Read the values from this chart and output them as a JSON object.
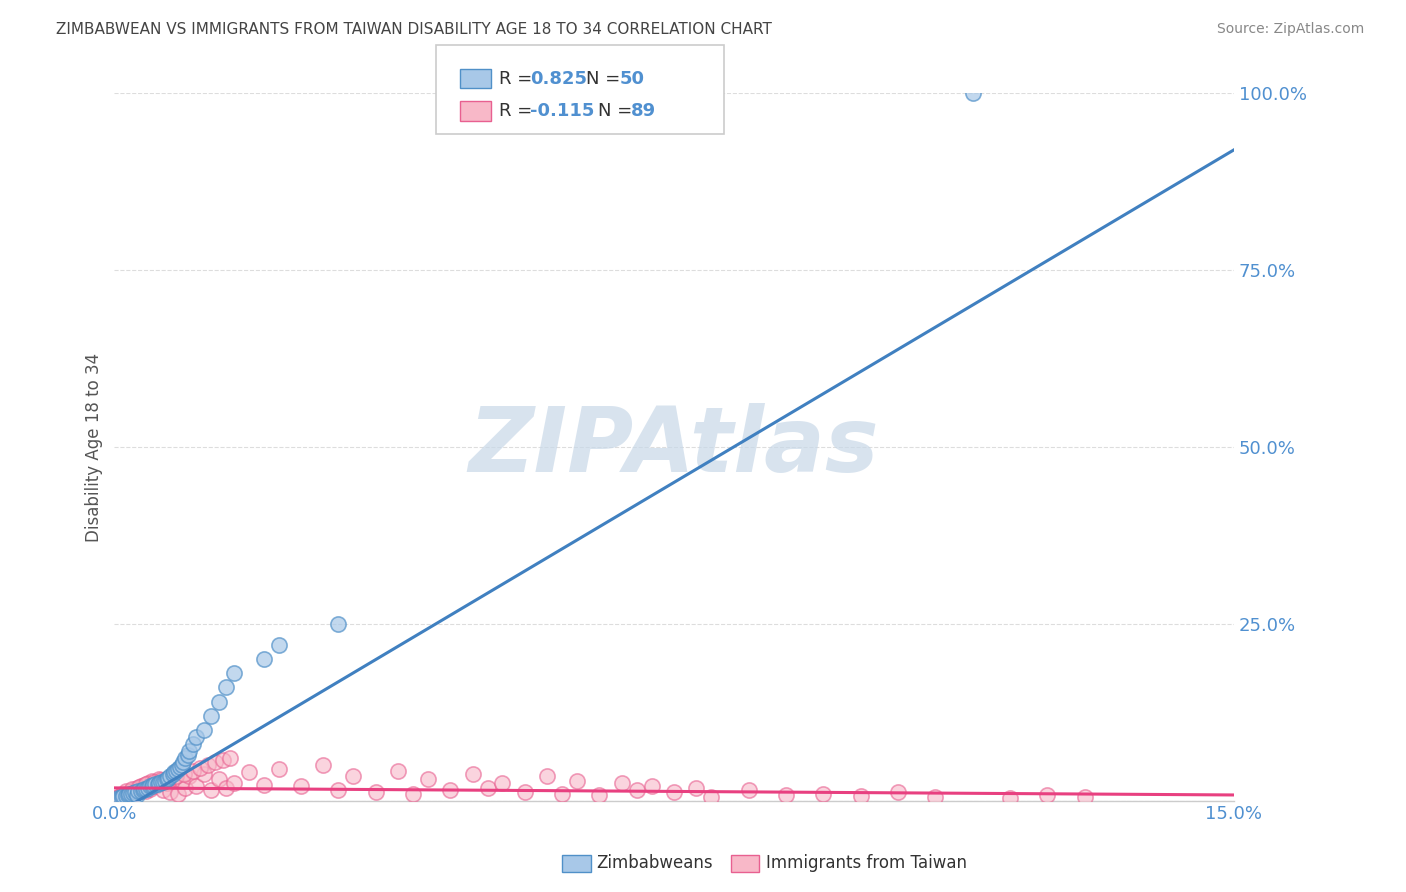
{
  "title": "ZIMBABWEAN VS IMMIGRANTS FROM TAIWAN DISABILITY AGE 18 TO 34 CORRELATION CHART",
  "source": "Source: ZipAtlas.com",
  "xlim": [
    0.0,
    15.0
  ],
  "ylim": [
    0.0,
    100.0
  ],
  "ylabel": "Disability Age 18 to 34",
  "legend_blue_r": "R = 0.825",
  "legend_blue_n": "N = 50",
  "legend_pink_r": "R = -0.115",
  "legend_pink_n": "N = 89",
  "legend_blue_label": "Zimbabweans",
  "legend_pink_label": "Immigrants from Taiwan",
  "blue_scatter_color": "#a8c8e8",
  "blue_edge_color": "#5090c8",
  "pink_scatter_color": "#f8b8c8",
  "pink_edge_color": "#e86090",
  "blue_line_color": "#4080c0",
  "pink_line_color": "#e84080",
  "watermark_color": "#c8d8e8",
  "background_color": "#ffffff",
  "grid_color": "#dddddd",
  "tick_color": "#5090d0",
  "title_color": "#444444",
  "legend_text_color_dark": "#333333",
  "blue_line_x0": 0.0,
  "blue_line_y0": -2.0,
  "blue_line_x1": 15.0,
  "blue_line_y1": 92.0,
  "pink_line_x0": 0.0,
  "pink_line_y0": 1.8,
  "pink_line_x1": 15.0,
  "pink_line_y1": 0.8,
  "blue_scatter_x": [
    0.05,
    0.08,
    0.1,
    0.12,
    0.15,
    0.18,
    0.2,
    0.22,
    0.25,
    0.28,
    0.3,
    0.32,
    0.35,
    0.38,
    0.4,
    0.42,
    0.45,
    0.48,
    0.5,
    0.52,
    0.55,
    0.58,
    0.6,
    0.62,
    0.65,
    0.68,
    0.7,
    0.72,
    0.75,
    0.78,
    0.8,
    0.82,
    0.85,
    0.88,
    0.9,
    0.92,
    0.95,
    0.98,
    1.0,
    1.05,
    1.1,
    1.2,
    1.3,
    1.4,
    1.5,
    1.6,
    2.0,
    2.2,
    3.0,
    11.5
  ],
  "blue_scatter_y": [
    0.4,
    0.3,
    0.5,
    0.6,
    0.7,
    0.8,
    1.0,
    0.9,
    1.1,
    1.2,
    0.8,
    1.3,
    1.4,
    1.5,
    1.6,
    1.7,
    1.8,
    2.0,
    2.1,
    2.2,
    2.3,
    2.4,
    2.5,
    2.6,
    2.7,
    2.8,
    3.0,
    3.2,
    3.5,
    3.8,
    4.0,
    4.2,
    4.5,
    4.8,
    5.0,
    5.5,
    6.0,
    6.5,
    7.0,
    8.0,
    9.0,
    10.0,
    12.0,
    14.0,
    16.0,
    18.0,
    20.0,
    22.0,
    25.0,
    100.0
  ],
  "pink_scatter_x": [
    0.02,
    0.05,
    0.08,
    0.1,
    0.12,
    0.15,
    0.18,
    0.2,
    0.22,
    0.25,
    0.28,
    0.3,
    0.32,
    0.35,
    0.38,
    0.4,
    0.42,
    0.45,
    0.48,
    0.5,
    0.55,
    0.6,
    0.65,
    0.7,
    0.75,
    0.8,
    0.85,
    0.9,
    0.95,
    1.0,
    1.1,
    1.2,
    1.3,
    1.4,
    1.5,
    1.6,
    1.8,
    2.0,
    2.2,
    2.5,
    2.8,
    3.0,
    3.2,
    3.5,
    3.8,
    4.0,
    4.2,
    4.5,
    4.8,
    5.0,
    5.2,
    5.5,
    5.8,
    6.0,
    6.2,
    6.5,
    6.8,
    7.0,
    7.2,
    7.5,
    7.8,
    8.0,
    8.5,
    9.0,
    9.5,
    10.0,
    10.5,
    11.0,
    12.0,
    12.5,
    13.0,
    0.03,
    0.07,
    0.11,
    0.16,
    0.23,
    0.33,
    0.43,
    0.53,
    0.63,
    0.73,
    0.83,
    0.93,
    1.05,
    1.15,
    1.25,
    1.35,
    1.45,
    1.55
  ],
  "pink_scatter_y": [
    0.3,
    0.5,
    0.4,
    0.8,
    0.6,
    1.0,
    0.7,
    1.2,
    0.9,
    1.5,
    1.1,
    1.8,
    1.3,
    2.0,
    1.6,
    2.2,
    1.4,
    2.5,
    1.7,
    2.8,
    2.0,
    3.0,
    1.5,
    2.5,
    1.2,
    3.2,
    1.0,
    2.8,
    1.8,
    3.5,
    2.0,
    3.8,
    1.5,
    3.0,
    1.8,
    2.5,
    4.0,
    2.2,
    4.5,
    2.0,
    5.0,
    1.5,
    3.5,
    1.2,
    4.2,
    1.0,
    3.0,
    1.5,
    3.8,
    1.8,
    2.5,
    1.2,
    3.5,
    1.0,
    2.8,
    0.8,
    2.5,
    1.5,
    2.0,
    1.2,
    1.8,
    0.5,
    1.5,
    0.8,
    1.0,
    0.6,
    1.2,
    0.5,
    0.3,
    0.8,
    0.5,
    0.2,
    0.6,
    0.9,
    1.3,
    1.6,
    1.9,
    2.3,
    2.6,
    2.9,
    3.2,
    3.5,
    3.8,
    4.2,
    4.6,
    5.0,
    5.4,
    5.8,
    6.0
  ]
}
